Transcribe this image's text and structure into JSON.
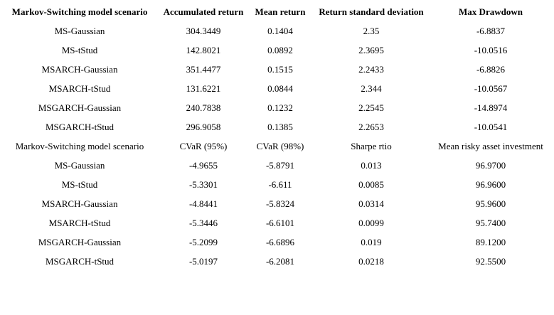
{
  "tables": [
    {
      "header": [
        "Markov-Switching model scenario",
        "Accumulated return",
        "Mean return",
        "Return standard deviation",
        "Max Drawdown"
      ],
      "rows": [
        [
          "MS-Gaussian",
          "304.3449",
          "0.1404",
          "2.35",
          "-6.8837"
        ],
        [
          "MS-tStud",
          "142.8021",
          "0.0892",
          "2.3695",
          "-10.0516"
        ],
        [
          "MSARCH-Gaussian",
          "351.4477",
          "0.1515",
          "2.2433",
          "-6.8826"
        ],
        [
          "MSARCH-tStud",
          "131.6221",
          "0.0844",
          "2.344",
          "-10.0567"
        ],
        [
          "MSGARCH-Gaussian",
          "240.7838",
          "0.1232",
          "2.2545",
          "-14.8974"
        ],
        [
          "MSGARCH-tStud",
          "296.9058",
          "0.1385",
          "2.2653",
          "-10.0541"
        ]
      ]
    },
    {
      "header": [
        "Markov-Switching model scenario",
        "CVaR (95%)",
        "CVaR (98%)",
        "Sharpe rtio",
        "Mean risky asset investment"
      ],
      "rows": [
        [
          "MS-Gaussian",
          "-4.9655",
          "-5.8791",
          "0.013",
          "96.9700"
        ],
        [
          "MS-tStud",
          "-5.3301",
          "-6.611",
          "0.0085",
          "96.9600"
        ],
        [
          "MSARCH-Gaussian",
          "-4.8441",
          "-5.8324",
          "0.0314",
          "95.9600"
        ],
        [
          "MSARCH-tStud",
          "-5.3446",
          "-6.6101",
          "0.0099",
          "95.7400"
        ],
        [
          "MSGARCH-Gaussian",
          "-5.2099",
          "-6.6896",
          "0.019",
          "89.1200"
        ],
        [
          "MSGARCH-tStud",
          "-5.0197",
          "-6.2081",
          "0.0218",
          "92.5500"
        ]
      ]
    }
  ]
}
